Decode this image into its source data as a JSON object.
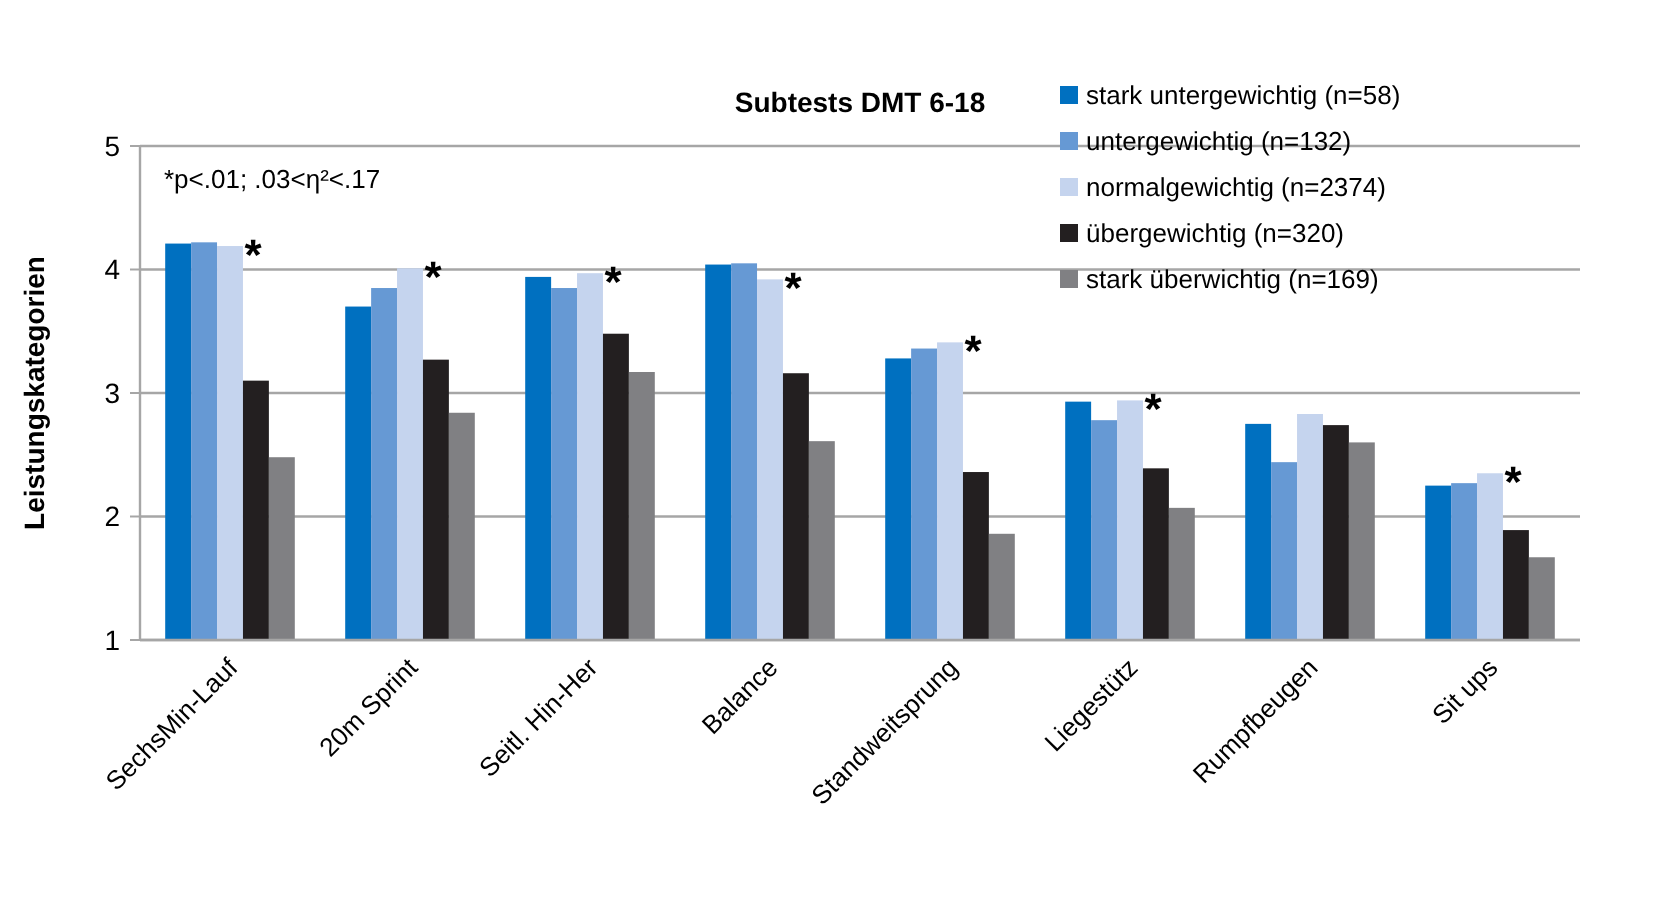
{
  "chart_data": {
    "type": "bar",
    "title": "Subtests DMT 6-18",
    "ylabel": "Leistungskategorien",
    "categories": [
      "SechsMin-Lauf",
      "20m Sprint",
      "Seitl. Hin-Her",
      "Balance",
      "Standweitsprung",
      "Liegestütz",
      "Rumpfbeugen",
      "Sit ups"
    ],
    "series": [
      {
        "name": "stark untergewichtig (n=58)",
        "color": "#0070c0",
        "values": [
          4.21,
          3.7,
          3.94,
          4.04,
          3.28,
          2.93,
          2.75,
          2.25
        ]
      },
      {
        "name": "untergewichtig (n=132)",
        "color": "#6699d4",
        "values": [
          4.22,
          3.85,
          3.85,
          4.05,
          3.36,
          2.78,
          2.44,
          2.27
        ]
      },
      {
        "name": "normalgewichtig (n=2374)",
        "color": "#c5d4ee",
        "values": [
          4.19,
          4.01,
          3.97,
          3.92,
          3.41,
          2.94,
          2.83,
          2.35
        ]
      },
      {
        "name": "übergewichtig (n=320)",
        "color": "#231f20",
        "values": [
          3.1,
          3.27,
          3.48,
          3.16,
          2.36,
          2.39,
          2.74,
          1.89
        ]
      },
      {
        "name": "stark überwichtig (n=169)",
        "color": "#808083",
        "values": [
          2.48,
          2.84,
          3.17,
          2.61,
          1.86,
          2.07,
          2.6,
          1.67
        ]
      }
    ],
    "ylim": [
      1,
      5
    ],
    "yticks": [
      1,
      2,
      3,
      4,
      5
    ],
    "grid": "y",
    "legend": "top right",
    "annotations": [
      "*p<.01; .03<η²<.17",
      {
        "text": "*",
        "x": "SechsMin-Lauf",
        "y": 4.19
      },
      {
        "text": "*",
        "x": "20m Sprint",
        "y": 4.01
      },
      {
        "text": "*",
        "x": "Seitl. Hin-Her",
        "y": 3.97
      },
      {
        "text": "*",
        "x": "Balance",
        "y": 3.92
      },
      {
        "text": "*",
        "x": "Standweitsprung",
        "y": 3.41
      },
      {
        "text": "*",
        "x": "Liegestütz",
        "y": 2.94
      },
      {
        "text": "*",
        "x": "Sit ups",
        "y": 2.35
      }
    ]
  }
}
